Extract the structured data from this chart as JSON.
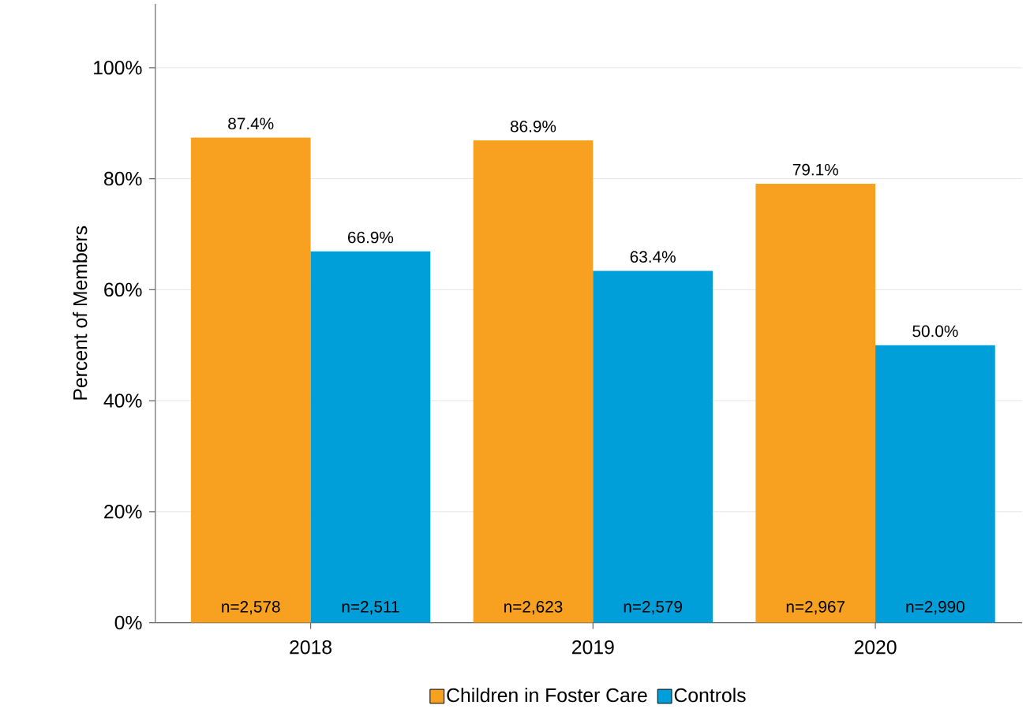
{
  "chart_data": {
    "type": "bar",
    "ylabel": "Percent of Members",
    "categories": [
      "2018",
      "2019",
      "2020"
    ],
    "series": [
      {
        "name": "Children in Foster Care",
        "color": "#f8a01f",
        "values": [
          87.4,
          86.9,
          79.1
        ],
        "value_labels": [
          "87.4%",
          "86.9%",
          "79.1%"
        ]
      },
      {
        "name": "Controls",
        "color": "#009fd9",
        "values": [
          66.9,
          63.4,
          50.0
        ],
        "value_labels": [
          "66.9%",
          "63.4%",
          "50.0%"
        ]
      }
    ],
    "ylim": [
      0,
      111.5
    ],
    "yticks": [
      {
        "value": 0,
        "label": "0%"
      },
      {
        "value": 20,
        "label": "20%"
      },
      {
        "value": 40,
        "label": "40%"
      },
      {
        "value": 60,
        "label": "60%"
      },
      {
        "value": 80,
        "label": "80%"
      },
      {
        "value": 100,
        "label": "100%"
      }
    ],
    "grid": "y",
    "legend": "bottom",
    "annotations": [
      {
        "text": "n=2,578",
        "x": "2018",
        "y": 0
      },
      {
        "text": "n=2,511",
        "x": "2018",
        "y": 0
      },
      {
        "text": "n=2,623",
        "x": "2019",
        "y": 0
      },
      {
        "text": "n=2,579",
        "x": "2019",
        "y": 0
      },
      {
        "text": "n=2,967",
        "x": "2020",
        "y": 0
      },
      {
        "text": "n=2,990",
        "x": "2020",
        "y": 0
      }
    ]
  }
}
